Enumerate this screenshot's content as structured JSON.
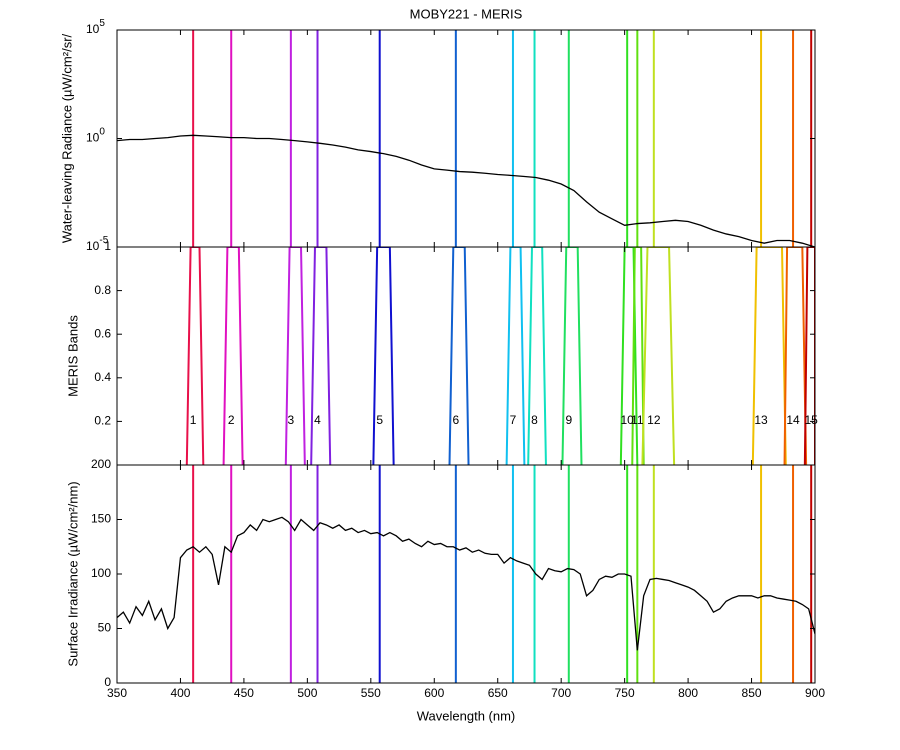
{
  "title": "MOBY221 - MERIS",
  "xlabel": "Wavelength (nm)",
  "chart_data": [
    {
      "type": "line",
      "ylabel": "Water-leaving Radiance (µW/cm²/sr/",
      "log": "y",
      "color": "#000000",
      "ylim": [
        1e-05,
        100000
      ],
      "yticks": [
        {
          "value": 1e-05,
          "label": "10",
          "exponent": "-5"
        },
        {
          "value": 1,
          "label": "10",
          "exponent": "0"
        },
        {
          "value": 100000,
          "label": "10",
          "exponent": "5"
        }
      ],
      "x": [
        350,
        360,
        370,
        380,
        390,
        400,
        410,
        420,
        430,
        440,
        450,
        460,
        470,
        480,
        490,
        500,
        510,
        520,
        530,
        540,
        550,
        560,
        570,
        580,
        590,
        600,
        610,
        620,
        630,
        640,
        650,
        660,
        670,
        680,
        690,
        700,
        710,
        720,
        730,
        740,
        750,
        760,
        770,
        780,
        790,
        800,
        810,
        820,
        830,
        840,
        850,
        860,
        870,
        880,
        890,
        900
      ],
      "values": [
        0.8,
        0.9,
        0.9,
        1.0,
        1.1,
        1.3,
        1.4,
        1.3,
        1.2,
        1.1,
        1.1,
        1.0,
        1.0,
        0.9,
        0.8,
        0.7,
        0.6,
        0.5,
        0.4,
        0.3,
        0.25,
        0.2,
        0.15,
        0.1,
        0.06,
        0.04,
        0.035,
        0.03,
        0.028,
        0.025,
        0.022,
        0.02,
        0.018,
        0.016,
        0.012,
        0.008,
        0.004,
        0.0012,
        0.0004,
        0.0002,
        0.0001,
        0.00012,
        0.00013,
        0.00015,
        0.00017,
        0.00015,
        0.0001,
        6e-05,
        4e-05,
        3e-05,
        2e-05,
        1.5e-05,
        2e-05,
        2e-05,
        1.5e-05,
        1e-05
      ]
    },
    {
      "type": "bands",
      "ylabel": "MERIS Bands",
      "ylim": [
        0,
        1
      ],
      "yticks": [
        0.2,
        0.4,
        0.6,
        0.8,
        1
      ],
      "series": [
        {
          "name": "1",
          "color": "#e8104a",
          "center": 410,
          "x": [
            405,
            408,
            415,
            418
          ],
          "values": [
            0,
            1,
            1,
            0
          ]
        },
        {
          "name": "2",
          "color": "#e010c0",
          "center": 440,
          "x": [
            434,
            437,
            446,
            449
          ],
          "values": [
            0,
            1,
            1,
            0
          ]
        },
        {
          "name": "3",
          "color": "#c020e0",
          "center": 487,
          "x": [
            483,
            486,
            495,
            498
          ],
          "values": [
            0,
            1,
            1,
            0
          ]
        },
        {
          "name": "4",
          "color": "#8020e0",
          "center": 508,
          "x": [
            503,
            506,
            515,
            518
          ],
          "values": [
            0,
            1,
            1,
            0
          ]
        },
        {
          "name": "5",
          "color": "#1010d0",
          "center": 557,
          "x": [
            552,
            555,
            565,
            568
          ],
          "values": [
            0,
            1,
            1,
            0
          ]
        },
        {
          "name": "6",
          "color": "#1060d0",
          "center": 617,
          "x": [
            612,
            615,
            624,
            627
          ],
          "values": [
            0,
            1,
            1,
            0
          ]
        },
        {
          "name": "7",
          "color": "#10c0f0",
          "center": 662,
          "x": [
            657,
            660,
            668,
            671
          ],
          "values": [
            0,
            1,
            1,
            0
          ]
        },
        {
          "name": "8",
          "color": "#10e0c0",
          "center": 679,
          "x": [
            674,
            677,
            685,
            688
          ],
          "values": [
            0,
            1,
            1,
            0
          ]
        },
        {
          "name": "9",
          "color": "#20e060",
          "center": 706,
          "x": [
            701,
            704,
            713,
            716
          ],
          "values": [
            0,
            1,
            1,
            0
          ]
        },
        {
          "name": "10",
          "color": "#30e020",
          "center": 752,
          "x": [
            747,
            750,
            757,
            760
          ],
          "values": [
            0,
            1,
            1,
            0
          ]
        },
        {
          "name": "11",
          "color": "#60e010",
          "center": 760,
          "x": [
            756,
            758,
            763,
            765
          ],
          "values": [
            0,
            1,
            1,
            0
          ]
        },
        {
          "name": "12",
          "color": "#c0e020",
          "center": 773,
          "x": [
            764,
            768,
            785,
            789
          ],
          "values": [
            0,
            1,
            1,
            0
          ]
        },
        {
          "name": "13",
          "color": "#f0c000",
          "center": 857.5,
          "x": [
            851,
            854,
            874,
            877
          ],
          "values": [
            0,
            1,
            1,
            0
          ]
        },
        {
          "name": "14",
          "color": "#f06000",
          "center": 882.7,
          "x": [
            876,
            878,
            890,
            893
          ],
          "values": [
            0,
            1,
            1,
            0
          ]
        },
        {
          "name": "15",
          "color": "#c00000",
          "center": 897,
          "x": [
            892,
            894,
            900,
            900
          ],
          "values": [
            0,
            1,
            1,
            0
          ]
        }
      ]
    },
    {
      "type": "line",
      "ylabel": "Surface Irradiance (µW/cm²/nm)",
      "color": "#000000",
      "xlim": [
        350,
        900
      ],
      "xticks": [
        350,
        400,
        450,
        500,
        550,
        600,
        650,
        700,
        750,
        800,
        850,
        900
      ],
      "ylim": [
        0,
        200
      ],
      "yticks": [
        0,
        50,
        100,
        150,
        200
      ],
      "x": [
        350,
        355,
        360,
        365,
        370,
        375,
        380,
        385,
        390,
        395,
        400,
        405,
        410,
        415,
        420,
        425,
        430,
        435,
        440,
        445,
        450,
        455,
        460,
        465,
        470,
        475,
        480,
        485,
        490,
        495,
        500,
        505,
        510,
        515,
        520,
        525,
        530,
        535,
        540,
        545,
        550,
        555,
        560,
        565,
        570,
        575,
        580,
        585,
        590,
        595,
        600,
        605,
        610,
        615,
        620,
        625,
        630,
        635,
        640,
        645,
        650,
        655,
        660,
        665,
        670,
        675,
        680,
        685,
        690,
        695,
        700,
        705,
        710,
        715,
        720,
        725,
        730,
        735,
        740,
        745,
        750,
        755,
        760,
        765,
        770,
        775,
        780,
        785,
        790,
        795,
        800,
        805,
        810,
        815,
        820,
        825,
        830,
        835,
        840,
        845,
        850,
        855,
        860,
        865,
        870,
        875,
        880,
        885,
        890,
        895,
        900
      ],
      "values": [
        60,
        65,
        55,
        70,
        62,
        75,
        58,
        68,
        50,
        60,
        115,
        122,
        125,
        120,
        125,
        118,
        90,
        125,
        120,
        135,
        138,
        145,
        140,
        150,
        148,
        150,
        152,
        148,
        140,
        150,
        145,
        140,
        147,
        145,
        142,
        145,
        140,
        142,
        138,
        140,
        137,
        138,
        135,
        138,
        135,
        130,
        132,
        128,
        125,
        130,
        127,
        128,
        125,
        125,
        122,
        124,
        120,
        122,
        119,
        118,
        118,
        110,
        115,
        112,
        110,
        108,
        100,
        95,
        105,
        103,
        102,
        105,
        104,
        100,
        80,
        85,
        95,
        98,
        97,
        100,
        100,
        98,
        30,
        80,
        95,
        96,
        95,
        94,
        92,
        90,
        88,
        85,
        80,
        75,
        65,
        68,
        75,
        78,
        80,
        80,
        80,
        78,
        80,
        80,
        78,
        77,
        76,
        75,
        72,
        68,
        45
      ]
    }
  ]
}
